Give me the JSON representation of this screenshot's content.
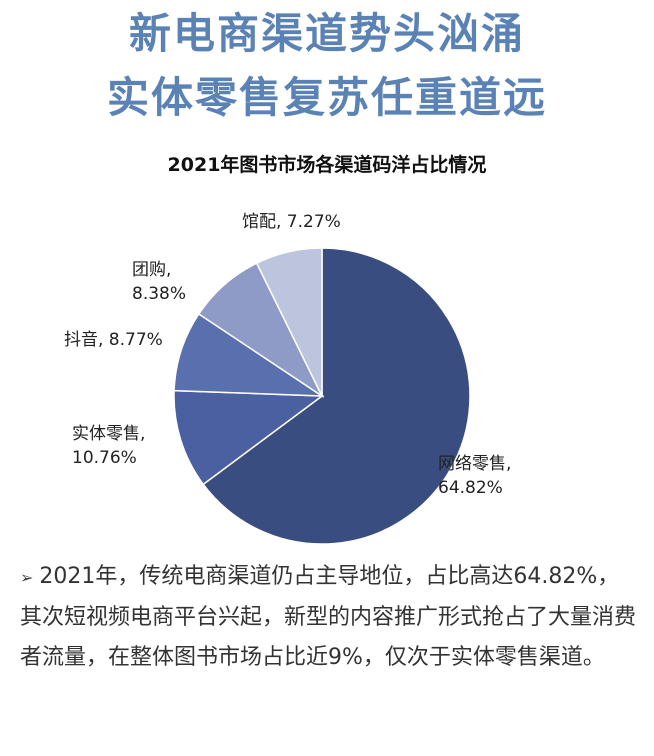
{
  "headline": {
    "line1": "新电商渠道势头汹涌",
    "line2": "实体零售复苏任重道远"
  },
  "chart_data": {
    "type": "pie",
    "title": "2021年图书市场各渠道码洋占比情况",
    "slices": [
      {
        "label": "网络零售",
        "value": 64.82,
        "display": "64.82%",
        "color": "#3a4d80"
      },
      {
        "label": "实体零售",
        "value": 10.76,
        "display": "10.76%",
        "color": "#4a60a0"
      },
      {
        "label": "抖音",
        "value": 8.77,
        "display": "8.77%",
        "color": "#5a6fae"
      },
      {
        "label": "团购",
        "value": 8.38,
        "display": "8.38%",
        "color": "#8e9bc6"
      },
      {
        "label": "馆配",
        "value": 7.27,
        "display": "7.27%",
        "color": "#bcc4de"
      }
    ],
    "legend": "none"
  },
  "pie_labels": {
    "online": "网络零售,\n64.82%",
    "retail": "实体零售,\n10.76%",
    "douyin": "抖音, 8.77%",
    "group": "团购,\n8.38%",
    "library": "馆配, 7.27%"
  },
  "note": {
    "bullet": "➢",
    "text": "2021年，传统电商渠道仍占主导地位，占比高达64.82%，其次短视频电商平台兴起，新型的内容推广形式抢占了大量消费者流量，在整体图书市场占比近9%，仅次于实体零售渠道。"
  }
}
